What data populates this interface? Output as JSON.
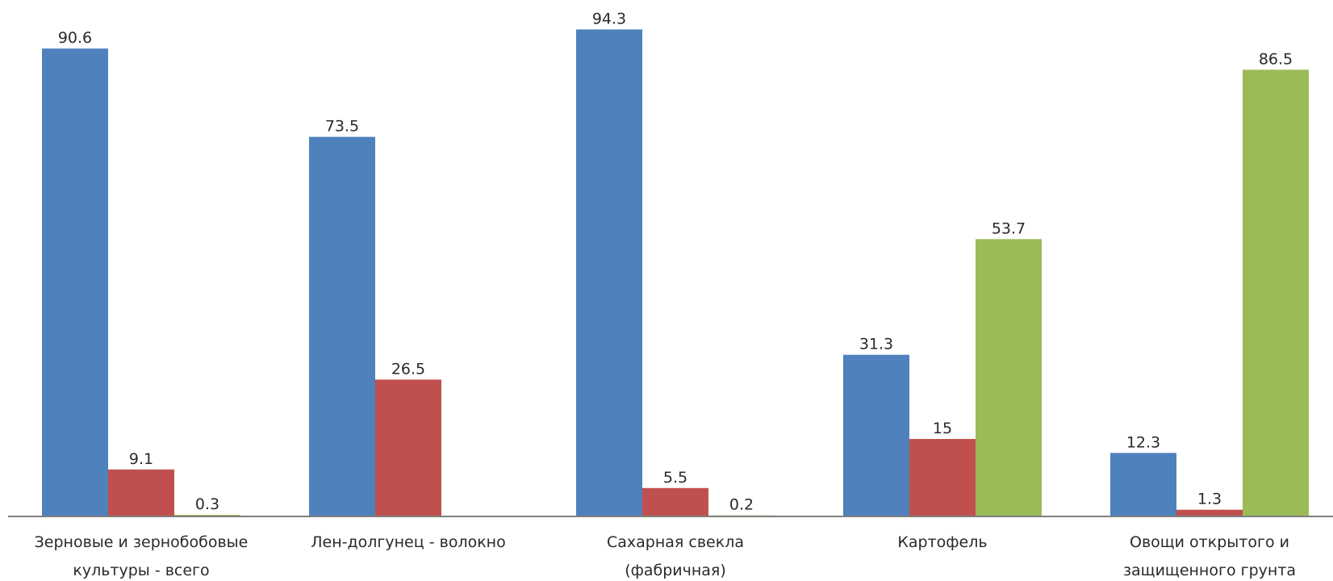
{
  "chart_data": {
    "type": "bar",
    "title": "",
    "xlabel": "",
    "ylabel": "",
    "ylim": [
      0,
      100
    ],
    "grid": false,
    "legend": "none",
    "categories": [
      [
        "Зерновые и зернобобовые",
        "культуры - всего"
      ],
      [
        "Лен-долгунец - волокно"
      ],
      [
        "Сахарная свекла",
        "(фабричная)"
      ],
      [
        "Картофель"
      ],
      [
        "Овощи открытого и",
        "защищенного грунта"
      ]
    ],
    "series": [
      {
        "color": "#4f81bd",
        "values": [
          90.6,
          73.5,
          94.3,
          31.3,
          12.3
        ],
        "labels": [
          "90.6",
          "73.5",
          "94.3",
          "31.3",
          "12.3"
        ]
      },
      {
        "color": "#c0504d",
        "values": [
          9.1,
          26.5,
          5.5,
          15,
          1.3
        ],
        "labels": [
          "9.1",
          "26.5",
          "5.5",
          "15",
          "1.3"
        ]
      },
      {
        "color": "#9bbb59",
        "values": [
          0.3,
          null,
          0.2,
          53.7,
          86.5
        ],
        "labels": [
          "0.3",
          "",
          "0.2",
          "53.7",
          "86.5"
        ]
      }
    ]
  }
}
